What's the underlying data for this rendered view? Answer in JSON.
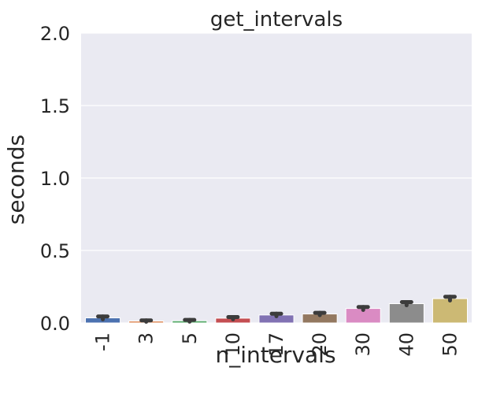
{
  "chart_data": {
    "type": "bar",
    "title": "get_intervals",
    "xlabel": "n_intervals",
    "ylabel": "seconds",
    "categories": [
      "-1",
      "3",
      "5",
      "10",
      "17",
      "20",
      "30",
      "40",
      "50"
    ],
    "values": [
      0.035,
      0.013,
      0.015,
      0.033,
      0.055,
      0.062,
      0.1,
      0.133,
      0.168
    ],
    "errors": [
      0.01,
      0.005,
      0.006,
      0.008,
      0.009,
      0.008,
      0.01,
      0.011,
      0.013
    ],
    "colors": [
      "#4c72b0",
      "#dd8452",
      "#55a868",
      "#c44e52",
      "#8172b3",
      "#937860",
      "#da8bc3",
      "#8c8c8c",
      "#ccb974"
    ],
    "ylim": [
      0,
      2.0
    ],
    "yticks": [
      "0.0",
      "0.5",
      "1.0",
      "1.5",
      "2.0"
    ],
    "grid": true,
    "background": "#eaeaf2",
    "error_bar_color": "#3c3c3c"
  }
}
